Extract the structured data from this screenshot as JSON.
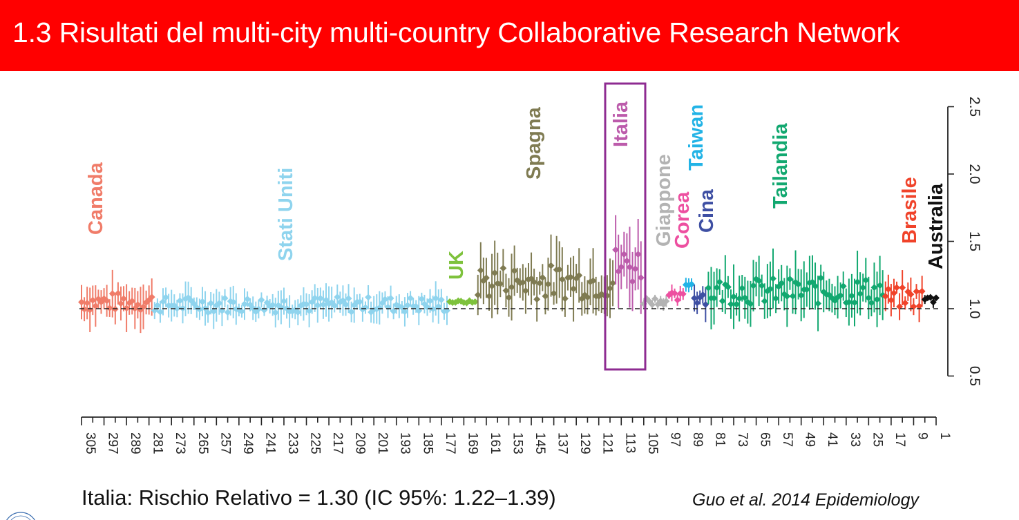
{
  "header": {
    "title": "1.3 Risultati del multi-city multi-country Collaborative Research Network",
    "background": "#ff0000"
  },
  "chart_data": {
    "type": "scatter",
    "subtype": "forest-plot (point estimates with 95% CI error bars)",
    "orientation": "rotated 90 degrees clockwise",
    "xlabel": "",
    "ylabel": "",
    "x_tick_labels": [
      305,
      297,
      289,
      281,
      273,
      265,
      257,
      249,
      241,
      233,
      225,
      217,
      209,
      201,
      193,
      185,
      177,
      169,
      161,
      153,
      145,
      137,
      129,
      121,
      113,
      105,
      97,
      89,
      81,
      73,
      65,
      57,
      49,
      41,
      33,
      25,
      17,
      9,
      1
    ],
    "y_ticks": [
      0.5,
      1.0,
      1.5,
      2.0,
      2.5
    ],
    "y_tick_labels": [
      "0.5",
      "1.0",
      "1.5",
      "2.0",
      "2.5"
    ],
    "ylim": [
      0.5,
      2.5
    ],
    "reference_line": 1.0,
    "highlight": {
      "group": "Italia",
      "box_color": "#8e2b91"
    },
    "groups": [
      {
        "name": "Canada",
        "color": "#f07c69",
        "start": 305,
        "end": 280,
        "n": 26,
        "mean": 1.05,
        "spread": 0.07,
        "ci": 0.3
      },
      {
        "name": "Stati Uniti",
        "color": "#8fd4ee",
        "start": 279,
        "end": 175,
        "n": 105,
        "mean": 1.03,
        "spread": 0.06,
        "ci": 0.22
      },
      {
        "name": "UK",
        "color": "#7ec23c",
        "start": 174,
        "end": 165,
        "n": 10,
        "mean": 1.05,
        "spread": 0.01,
        "ci": 0.03
      },
      {
        "name": "Spagna",
        "color": "#7f7b52",
        "start": 164,
        "end": 116,
        "n": 49,
        "mean": 1.2,
        "spread": 0.13,
        "ci": 0.42
      },
      {
        "name": "Italia",
        "color": "#bc5bab",
        "start": 115,
        "end": 106,
        "n": 10,
        "mean": 1.32,
        "spread": 0.15,
        "ci": 0.55
      },
      {
        "name": "Giappone",
        "color": "#b3b3b3",
        "start": 105,
        "end": 97,
        "n": 9,
        "mean": 1.06,
        "spread": 0.03,
        "ci": 0.09
      },
      {
        "name": "Corea",
        "color": "#ed4fa0",
        "start": 96,
        "end": 91,
        "n": 6,
        "mean": 1.08,
        "spread": 0.04,
        "ci": 0.12
      },
      {
        "name": "Taiwan",
        "color": "#22b3e6",
        "start": 90,
        "end": 88,
        "n": 3,
        "mean": 1.18,
        "spread": 0.01,
        "ci": 0.1
      },
      {
        "name": "Cina",
        "color": "#3e4fa3",
        "start": 87,
        "end": 83,
        "n": 5,
        "mean": 1.1,
        "spread": 0.07,
        "ci": 0.22
      },
      {
        "name": "Tailandia",
        "color": "#12a870",
        "start": 82,
        "end": 20,
        "n": 63,
        "mean": 1.13,
        "spread": 0.1,
        "ci": 0.4
      },
      {
        "name": "Brasile",
        "color": "#f0432a",
        "start": 19,
        "end": 6,
        "n": 14,
        "mean": 1.08,
        "spread": 0.08,
        "ci": 0.22
      },
      {
        "name": "Australia",
        "color": "#111111",
        "start": 5,
        "end": 1,
        "n": 5,
        "mean": 1.07,
        "spread": 0.03,
        "ci": 0.08
      }
    ]
  },
  "footer": {
    "result": "Italia: Rischio Relativo = 1.30 (IC 95%: 1.22–1.39)",
    "citation": "Guo et al. 2014 Epidemiology"
  }
}
